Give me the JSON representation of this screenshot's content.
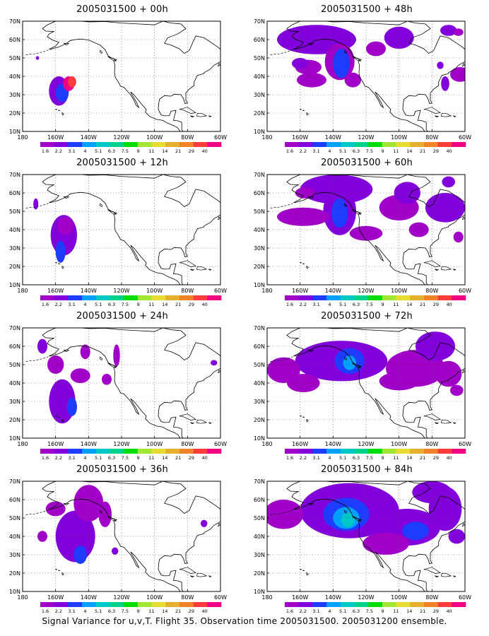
{
  "figure": {
    "caption": "Signal Variance for u,v,T. Flight 35. Observation time 2005031500. 2005031200 ensemble.",
    "lat_labels": [
      "70N",
      "60N",
      "50N",
      "40N",
      "30N",
      "20N",
      "10N"
    ],
    "lon_labels": [
      "180",
      "160W",
      "140W",
      "120W",
      "100W",
      "80W",
      "60W"
    ],
    "colorbar": {
      "colors": [
        "#a000c8",
        "#8200dc",
        "#1e3cff",
        "#00a0ff",
        "#00c8c8",
        "#00d28c",
        "#00dc00",
        "#a0e632",
        "#e6dc32",
        "#e6af2d",
        "#f08228",
        "#fa3c3c",
        "#f00082"
      ],
      "labels": [
        "1.6",
        "2.2",
        "3.1",
        "4",
        "5.1",
        "6.3",
        "7.5",
        "9",
        "11",
        "14",
        "21",
        "29",
        "40"
      ]
    },
    "panels": [
      {
        "title": "2005031500 + 00h"
      },
      {
        "title": "2005031500 + 48h"
      },
      {
        "title": "2005031500 + 12h"
      },
      {
        "title": "2005031500 + 60h"
      },
      {
        "title": "2005031500 + 24h"
      },
      {
        "title": "2005031500 + 72h"
      },
      {
        "title": "2005031500 + 36h"
      },
      {
        "title": "2005031500 + 84h"
      }
    ]
  }
}
